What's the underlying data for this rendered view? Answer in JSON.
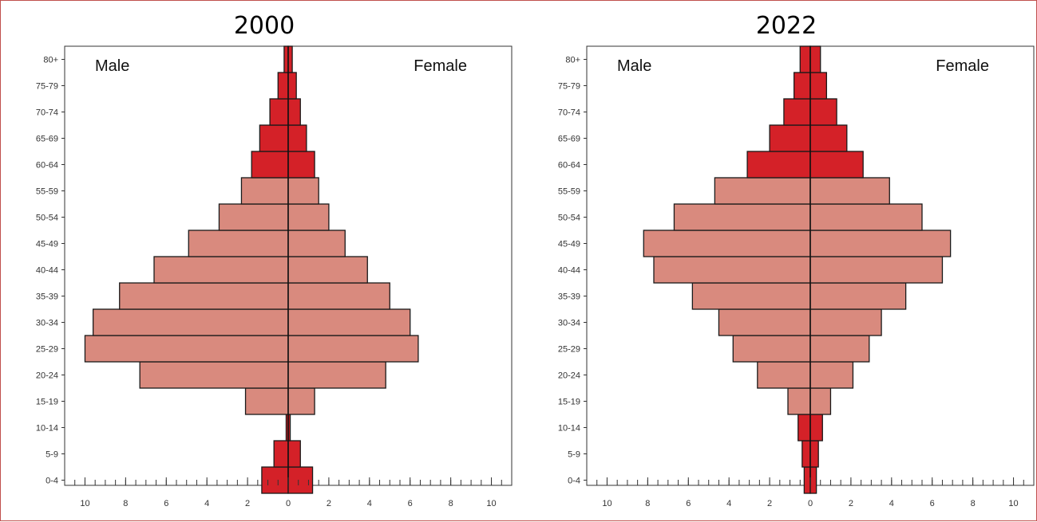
{
  "chart_data": [
    {
      "type": "bar",
      "orientation": "horizontal",
      "layout": "population-pyramid",
      "title": "2000",
      "categories": [
        "0-4",
        "5-9",
        "10-14",
        "15-19",
        "20-24",
        "25-29",
        "30-34",
        "35-39",
        "40-44",
        "45-49",
        "50-54",
        "55-59",
        "60-64",
        "65-69",
        "70-74",
        "75-79",
        "80+"
      ],
      "series": [
        {
          "name": "Male",
          "values": [
            1.3,
            0.7,
            0.1,
            2.1,
            7.3,
            10.0,
            9.6,
            8.3,
            6.6,
            4.9,
            3.4,
            2.3,
            1.8,
            1.4,
            0.9,
            0.5,
            0.2
          ]
        },
        {
          "name": "Female",
          "values": [
            1.2,
            0.6,
            0.1,
            1.3,
            4.8,
            6.4,
            6.0,
            5.0,
            3.9,
            2.8,
            2.0,
            1.5,
            1.3,
            0.9,
            0.6,
            0.4,
            0.2
          ]
        }
      ],
      "highlight_categories": [
        "0-4",
        "5-9",
        "10-14",
        "60-64",
        "65-69",
        "70-74",
        "75-79",
        "80+"
      ],
      "colors": {
        "base": "#d98a7e",
        "highlight": "#d42128"
      },
      "xlim": [
        -11,
        11
      ],
      "xticks": [
        "10",
        "8",
        "6",
        "4",
        "2",
        "0",
        "2",
        "4",
        "6",
        "8",
        "10"
      ],
      "grid": false
    },
    {
      "type": "bar",
      "orientation": "horizontal",
      "layout": "population-pyramid",
      "title": "2022",
      "categories": [
        "0-4",
        "5-9",
        "10-14",
        "15-19",
        "20-24",
        "25-29",
        "30-34",
        "35-39",
        "40-44",
        "45-49",
        "50-54",
        "55-59",
        "60-64",
        "65-69",
        "70-74",
        "75-79",
        "80+"
      ],
      "series": [
        {
          "name": "Male",
          "values": [
            0.3,
            0.4,
            0.6,
            1.1,
            2.6,
            3.8,
            4.5,
            5.8,
            7.7,
            8.2,
            6.7,
            4.7,
            3.1,
            2.0,
            1.3,
            0.8,
            0.5
          ]
        },
        {
          "name": "Female",
          "values": [
            0.3,
            0.4,
            0.6,
            1.0,
            2.1,
            2.9,
            3.5,
            4.7,
            6.5,
            6.9,
            5.5,
            3.9,
            2.6,
            1.8,
            1.3,
            0.8,
            0.5
          ]
        }
      ],
      "highlight_categories": [
        "0-4",
        "5-9",
        "10-14",
        "60-64",
        "65-69",
        "70-74",
        "75-79",
        "80+"
      ],
      "colors": {
        "base": "#d98a7e",
        "highlight": "#d42128"
      },
      "xlim": [
        -11,
        11
      ],
      "xticks": [
        "10",
        "8",
        "6",
        "4",
        "2",
        "0",
        "2",
        "4",
        "6",
        "8",
        "10"
      ],
      "grid": false
    }
  ]
}
